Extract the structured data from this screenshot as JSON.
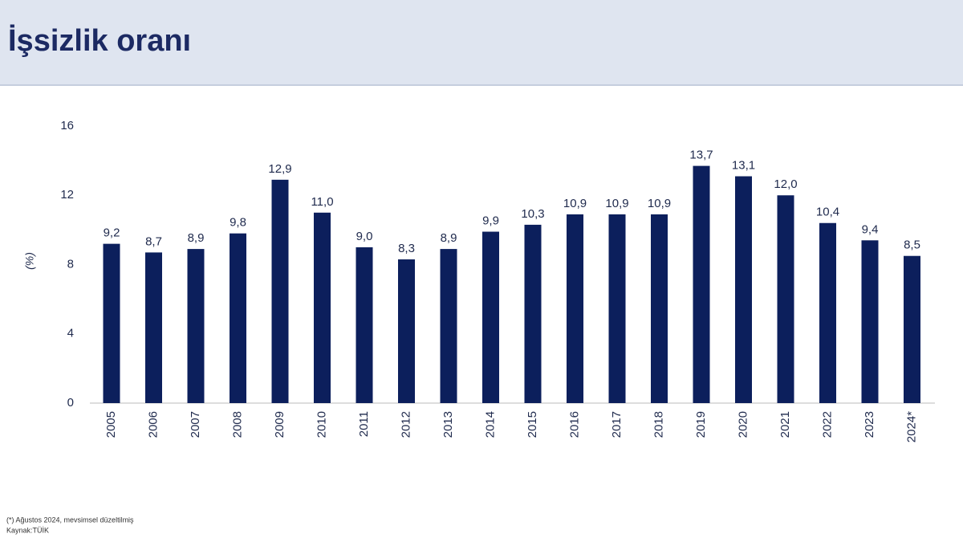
{
  "chart_data": {
    "type": "bar",
    "title": "İşsizlik oranı",
    "y_label": "(%)",
    "categories": [
      "2005",
      "2006",
      "2007",
      "2008",
      "2009",
      "2010",
      "2011",
      "2012",
      "2013",
      "2014",
      "2015",
      "2016",
      "2017",
      "2018",
      "2019",
      "2020",
      "2021",
      "2022",
      "2023",
      "2024*"
    ],
    "values": [
      9.2,
      8.7,
      8.9,
      9.8,
      12.9,
      11.0,
      9.0,
      8.3,
      8.9,
      9.9,
      10.3,
      10.9,
      10.9,
      10.9,
      13.7,
      13.1,
      12.0,
      10.4,
      9.4,
      8.5
    ],
    "value_labels": [
      "9,2",
      "8,7",
      "8,9",
      "9,8",
      "12,9",
      "11,0",
      "9,0",
      "8,3",
      "8,9",
      "9,9",
      "10,3",
      "10,9",
      "10,9",
      "10,9",
      "13,7",
      "13,1",
      "12,0",
      "10,4",
      "9,4",
      "8,5"
    ],
    "color": "#0c1f5c",
    "ylim": [
      0,
      16
    ],
    "yticks": [
      0,
      4,
      8,
      12,
      16
    ],
    "grid": false,
    "footnote": "(*) Ağustos 2024, mevsimsel düzeltilmiş",
    "source": "Kaynak:TÜİK"
  }
}
